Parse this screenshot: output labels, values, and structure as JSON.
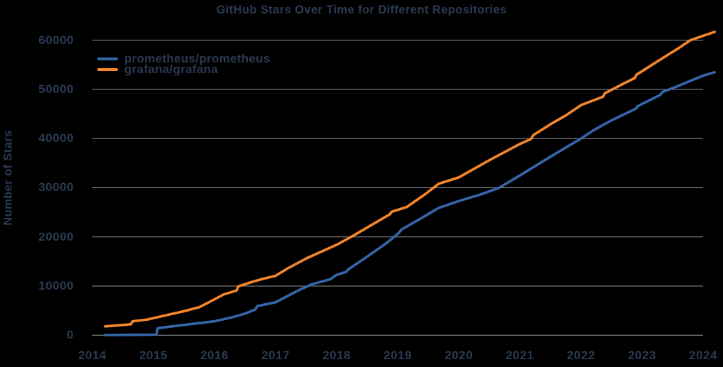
{
  "title": "GitHub Stars Over Time for Different Repositories",
  "colors": {
    "background": "#000000",
    "text": "#2b3a52",
    "gridline": "#8f9398",
    "prometheus_blue": "#3566a9",
    "grafana_orange": "#f6862a"
  },
  "legend": {
    "items": [
      {
        "label": "prometheus/prometheus",
        "color": "#3566a9"
      },
      {
        "label": "grafana/grafana",
        "color": "#f6862a"
      }
    ]
  },
  "chart_data": {
    "type": "line",
    "title": "GitHub Stars Over Time for Different Repositories",
    "xlabel": "",
    "ylabel": "Number of Stars",
    "xlim": [
      2014,
      2024.2
    ],
    "ylim": [
      0,
      62500
    ],
    "x_ticks": [
      2014,
      2015,
      2016,
      2017,
      2018,
      2019,
      2020,
      2021,
      2022,
      2023,
      2024
    ],
    "y_ticks": [
      0,
      10000,
      20000,
      30000,
      40000,
      50000,
      60000
    ],
    "grid": "horizontal",
    "legend_position": "top-left",
    "series": [
      {
        "name": "prometheus/prometheus",
        "color": "#3566a9",
        "points": [
          [
            2014.21,
            50
          ],
          [
            2014.6,
            80
          ],
          [
            2015.0,
            120
          ],
          [
            2015.05,
            160
          ],
          [
            2015.07,
            1450
          ],
          [
            2015.3,
            1800
          ],
          [
            2015.6,
            2250
          ],
          [
            2016.0,
            2850
          ],
          [
            2016.3,
            3700
          ],
          [
            2016.5,
            4400
          ],
          [
            2016.67,
            5250
          ],
          [
            2016.7,
            5950
          ],
          [
            2017.0,
            6700
          ],
          [
            2017.2,
            8000
          ],
          [
            2017.35,
            9000
          ],
          [
            2017.6,
            10400
          ],
          [
            2017.9,
            11400
          ],
          [
            2018.0,
            12300
          ],
          [
            2018.16,
            12900
          ],
          [
            2018.19,
            13400
          ],
          [
            2018.5,
            16000
          ],
          [
            2018.8,
            18600
          ],
          [
            2019.0,
            20600
          ],
          [
            2019.03,
            21000
          ],
          [
            2019.06,
            21500
          ],
          [
            2019.4,
            23900
          ],
          [
            2019.67,
            25900
          ],
          [
            2020.0,
            27300
          ],
          [
            2020.35,
            28600
          ],
          [
            2020.66,
            30000
          ],
          [
            2021.0,
            32500
          ],
          [
            2021.5,
            36300
          ],
          [
            2022.0,
            40000
          ],
          [
            2022.22,
            41800
          ],
          [
            2022.5,
            43700
          ],
          [
            2022.9,
            46100
          ],
          [
            2022.93,
            46600
          ],
          [
            2023.3,
            48900
          ],
          [
            2023.34,
            49500
          ],
          [
            2023.55,
            50500
          ],
          [
            2024.0,
            52800
          ],
          [
            2024.19,
            53500
          ]
        ]
      },
      {
        "name": "grafana/grafana",
        "color": "#f6862a",
        "points": [
          [
            2014.21,
            1800
          ],
          [
            2014.35,
            1950
          ],
          [
            2014.55,
            2150
          ],
          [
            2014.63,
            2250
          ],
          [
            2014.66,
            2850
          ],
          [
            2014.9,
            3200
          ],
          [
            2015.0,
            3500
          ],
          [
            2015.25,
            4200
          ],
          [
            2015.5,
            4900
          ],
          [
            2015.75,
            5700
          ],
          [
            2016.0,
            7300
          ],
          [
            2016.15,
            8300
          ],
          [
            2016.36,
            9100
          ],
          [
            2016.39,
            9950
          ],
          [
            2016.6,
            10800
          ],
          [
            2016.8,
            11500
          ],
          [
            2017.0,
            12100
          ],
          [
            2017.2,
            13600
          ],
          [
            2017.5,
            15600
          ],
          [
            2017.75,
            17000
          ],
          [
            2018.0,
            18400
          ],
          [
            2018.25,
            20100
          ],
          [
            2018.5,
            21900
          ],
          [
            2018.87,
            24600
          ],
          [
            2018.9,
            25100
          ],
          [
            2019.15,
            26100
          ],
          [
            2019.45,
            28700
          ],
          [
            2019.67,
            30800
          ],
          [
            2020.0,
            32100
          ],
          [
            2020.5,
            35600
          ],
          [
            2021.0,
            38900
          ],
          [
            2021.18,
            39900
          ],
          [
            2021.22,
            40700
          ],
          [
            2021.5,
            42900
          ],
          [
            2021.75,
            44700
          ],
          [
            2022.0,
            46800
          ],
          [
            2022.36,
            48500
          ],
          [
            2022.39,
            49200
          ],
          [
            2022.7,
            51200
          ],
          [
            2022.88,
            52300
          ],
          [
            2022.91,
            53000
          ],
          [
            2023.1,
            54500
          ],
          [
            2023.38,
            56700
          ],
          [
            2023.6,
            58400
          ],
          [
            2023.79,
            60000
          ],
          [
            2024.0,
            60900
          ],
          [
            2024.19,
            61700
          ]
        ]
      }
    ]
  }
}
